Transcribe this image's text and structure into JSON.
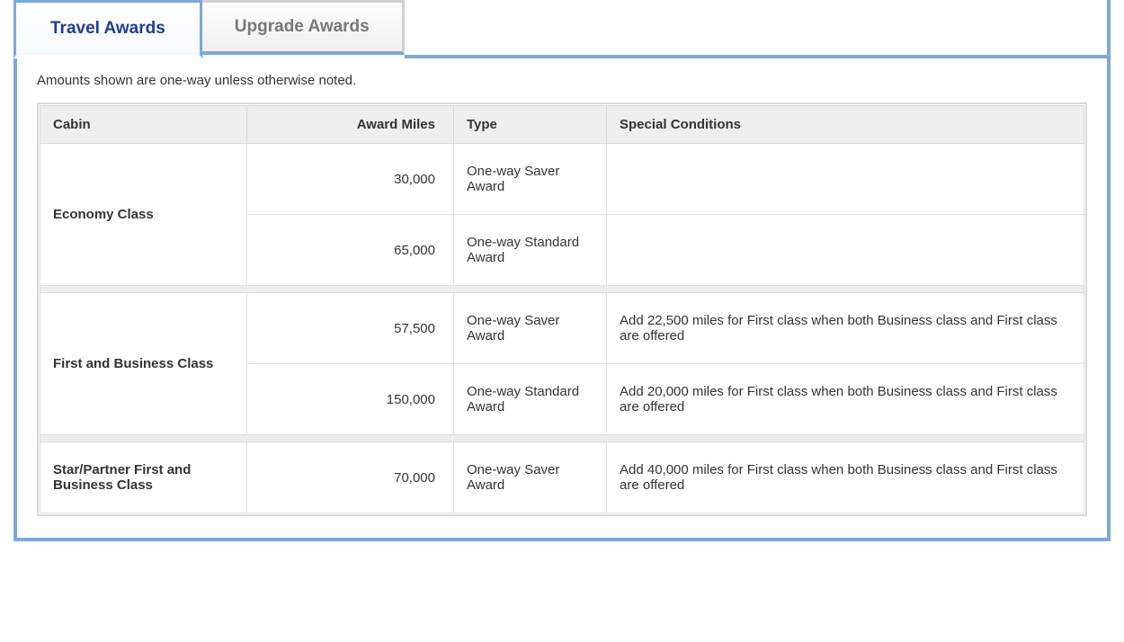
{
  "tabs": {
    "travel": "Travel Awards",
    "upgrade": "Upgrade Awards"
  },
  "note": "Amounts shown are one-way unless otherwise noted.",
  "table": {
    "columns": {
      "cabin": "Cabin",
      "miles": "Award Miles",
      "type": "Type",
      "conditions": "Special Conditions"
    },
    "groups": [
      {
        "cabin": "Economy Class",
        "rows": [
          {
            "miles": "30,000",
            "type": "One-way Saver Award",
            "conditions": ""
          },
          {
            "miles": "65,000",
            "type": "One-way Standard Award",
            "conditions": ""
          }
        ]
      },
      {
        "cabin": "First and Business Class",
        "rows": [
          {
            "miles": "57,500",
            "type": "One-way Saver Award",
            "conditions": "Add 22,500 miles for First class when both Business class and First class are offered"
          },
          {
            "miles": "150,000",
            "type": "One-way Standard Award",
            "conditions": "Add 20,000 miles for First class when both Business class and First class are offered"
          }
        ]
      },
      {
        "cabin": "Star/Partner First and Business Class",
        "rows": [
          {
            "miles": "70,000",
            "type": "One-way Saver Award",
            "conditions": "Add 40,000 miles for First class when both Business class and First class are offered"
          }
        ]
      }
    ]
  },
  "colors": {
    "tab_border": "#7ba7d9",
    "active_tab_text": "#1e3d8f",
    "inactive_tab_text": "#777777",
    "header_bg": "#eeeeee",
    "cell_border": "#e0e0e0",
    "section_gap_bg": "#ededed",
    "text": "#333333"
  }
}
